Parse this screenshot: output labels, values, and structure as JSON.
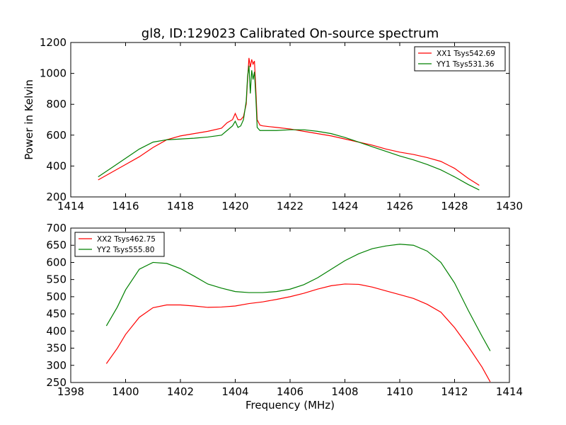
{
  "title": "gl8, ID:129023 Calibrated On-source spectrum",
  "xlabel": "Frequency (MHz)",
  "chart_data": [
    {
      "type": "line",
      "ylabel": "Power in Kelvin",
      "xlim": [
        1414,
        1430
      ],
      "ylim": [
        200,
        1200
      ],
      "xticks": [
        1414,
        1416,
        1418,
        1420,
        1422,
        1424,
        1426,
        1428,
        1430
      ],
      "yticks": [
        200,
        400,
        600,
        800,
        1000,
        1200
      ],
      "legend_position": "top-right",
      "series": [
        {
          "name": "XX1 Tsys542.69",
          "color": "#ff0000",
          "points": [
            [
              1415.0,
              310
            ],
            [
              1415.5,
              360
            ],
            [
              1416.0,
              410
            ],
            [
              1416.5,
              460
            ],
            [
              1417.0,
              520
            ],
            [
              1417.5,
              570
            ],
            [
              1418.0,
              595
            ],
            [
              1418.5,
              610
            ],
            [
              1419.0,
              625
            ],
            [
              1419.5,
              645
            ],
            [
              1419.7,
              680
            ],
            [
              1419.9,
              700
            ],
            [
              1420.0,
              740
            ],
            [
              1420.1,
              700
            ],
            [
              1420.2,
              700
            ],
            [
              1420.3,
              720
            ],
            [
              1420.4,
              800
            ],
            [
              1420.45,
              960
            ],
            [
              1420.5,
              1100
            ],
            [
              1420.55,
              1040
            ],
            [
              1420.6,
              1090
            ],
            [
              1420.65,
              1060
            ],
            [
              1420.7,
              1080
            ],
            [
              1420.75,
              900
            ],
            [
              1420.8,
              700
            ],
            [
              1420.9,
              665
            ],
            [
              1421.0,
              660
            ],
            [
              1421.5,
              650
            ],
            [
              1422.0,
              640
            ],
            [
              1422.5,
              625
            ],
            [
              1423.0,
              610
            ],
            [
              1423.5,
              595
            ],
            [
              1424.0,
              575
            ],
            [
              1424.5,
              555
            ],
            [
              1425.0,
              535
            ],
            [
              1425.5,
              510
            ],
            [
              1426.0,
              490
            ],
            [
              1426.5,
              475
            ],
            [
              1427.0,
              455
            ],
            [
              1427.5,
              430
            ],
            [
              1428.0,
              385
            ],
            [
              1428.5,
              320
            ],
            [
              1428.9,
              275
            ]
          ]
        },
        {
          "name": "YY1 Tsys531.36",
          "color": "#008000",
          "points": [
            [
              1415.0,
              330
            ],
            [
              1415.5,
              390
            ],
            [
              1416.0,
              450
            ],
            [
              1416.5,
              510
            ],
            [
              1417.0,
              555
            ],
            [
              1417.5,
              570
            ],
            [
              1418.0,
              575
            ],
            [
              1418.5,
              580
            ],
            [
              1419.0,
              588
            ],
            [
              1419.5,
              600
            ],
            [
              1419.7,
              630
            ],
            [
              1419.9,
              660
            ],
            [
              1420.0,
              690
            ],
            [
              1420.1,
              650
            ],
            [
              1420.2,
              660
            ],
            [
              1420.3,
              700
            ],
            [
              1420.4,
              820
            ],
            [
              1420.45,
              980
            ],
            [
              1420.5,
              1050
            ],
            [
              1420.55,
              870
            ],
            [
              1420.6,
              1020
            ],
            [
              1420.65,
              960
            ],
            [
              1420.7,
              1010
            ],
            [
              1420.75,
              850
            ],
            [
              1420.8,
              650
            ],
            [
              1420.9,
              630
            ],
            [
              1421.0,
              630
            ],
            [
              1421.5,
              630
            ],
            [
              1422.0,
              635
            ],
            [
              1422.5,
              635
            ],
            [
              1423.0,
              625
            ],
            [
              1423.5,
              610
            ],
            [
              1424.0,
              585
            ],
            [
              1424.5,
              555
            ],
            [
              1425.0,
              525
            ],
            [
              1425.5,
              495
            ],
            [
              1426.0,
              465
            ],
            [
              1426.5,
              440
            ],
            [
              1427.0,
              410
            ],
            [
              1427.5,
              375
            ],
            [
              1428.0,
              330
            ],
            [
              1428.5,
              280
            ],
            [
              1428.9,
              245
            ]
          ]
        }
      ]
    },
    {
      "type": "line",
      "xlim": [
        1398,
        1414
      ],
      "ylim": [
        250,
        700
      ],
      "xticks": [
        1398,
        1400,
        1402,
        1404,
        1406,
        1408,
        1410,
        1412,
        1414
      ],
      "yticks": [
        250,
        300,
        350,
        400,
        450,
        500,
        550,
        600,
        650,
        700
      ],
      "legend_position": "top-left",
      "series": [
        {
          "name": "XX2 Tsys462.75",
          "color": "#ff0000",
          "points": [
            [
              1399.3,
              305
            ],
            [
              1399.7,
              350
            ],
            [
              1400.0,
              390
            ],
            [
              1400.5,
              440
            ],
            [
              1401.0,
              468
            ],
            [
              1401.5,
              476
            ],
            [
              1402.0,
              476
            ],
            [
              1402.5,
              473
            ],
            [
              1403.0,
              469
            ],
            [
              1403.5,
              470
            ],
            [
              1404.0,
              473
            ],
            [
              1404.5,
              480
            ],
            [
              1405.0,
              485
            ],
            [
              1405.5,
              492
            ],
            [
              1406.0,
              500
            ],
            [
              1406.5,
              510
            ],
            [
              1407.0,
              522
            ],
            [
              1407.5,
              532
            ],
            [
              1408.0,
              537
            ],
            [
              1408.5,
              536
            ],
            [
              1409.0,
              528
            ],
            [
              1409.5,
              517
            ],
            [
              1410.0,
              506
            ],
            [
              1410.5,
              495
            ],
            [
              1411.0,
              478
            ],
            [
              1411.5,
              455
            ],
            [
              1412.0,
              410
            ],
            [
              1412.5,
              355
            ],
            [
              1413.0,
              295
            ],
            [
              1413.3,
              252
            ]
          ]
        },
        {
          "name": "YY2 Tsys555.80",
          "color": "#008000",
          "points": [
            [
              1399.3,
              415
            ],
            [
              1399.7,
              470
            ],
            [
              1400.0,
              520
            ],
            [
              1400.5,
              580
            ],
            [
              1401.0,
              600
            ],
            [
              1401.5,
              597
            ],
            [
              1402.0,
              582
            ],
            [
              1402.5,
              560
            ],
            [
              1403.0,
              537
            ],
            [
              1403.5,
              525
            ],
            [
              1404.0,
              515
            ],
            [
              1404.5,
              512
            ],
            [
              1405.0,
              512
            ],
            [
              1405.5,
              515
            ],
            [
              1406.0,
              522
            ],
            [
              1406.5,
              535
            ],
            [
              1407.0,
              555
            ],
            [
              1407.5,
              580
            ],
            [
              1408.0,
              605
            ],
            [
              1408.5,
              625
            ],
            [
              1409.0,
              640
            ],
            [
              1409.5,
              648
            ],
            [
              1410.0,
              653
            ],
            [
              1410.5,
              650
            ],
            [
              1411.0,
              633
            ],
            [
              1411.5,
              600
            ],
            [
              1412.0,
              540
            ],
            [
              1412.5,
              460
            ],
            [
              1413.0,
              385
            ],
            [
              1413.3,
              342
            ]
          ]
        }
      ]
    }
  ]
}
